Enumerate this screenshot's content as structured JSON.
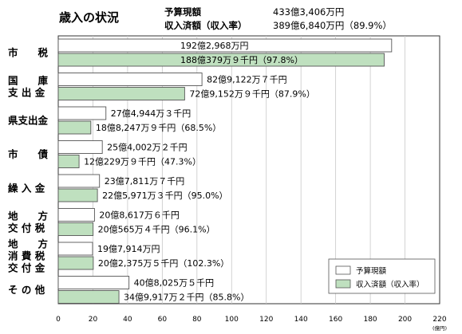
{
  "header": {
    "title": "歳入の状況",
    "budget_label": "予算現額",
    "budget_value": "433億3,406万円",
    "received_label": "収入済額（収入率）",
    "received_value": "389億6,840万円（89.9%）"
  },
  "legend": {
    "budget": "予算現額",
    "received": "収入済額（収入率）",
    "position": "bottom-right"
  },
  "colors": {
    "budget_fill": "#ffffff",
    "received_fill": "#bfe0bf",
    "bar_stroke": "#555555",
    "grid": "#c8c8c8",
    "axis": "#333333"
  },
  "chart_data": {
    "type": "bar",
    "orientation": "horizontal",
    "unit": "(億円)",
    "xlim": [
      0,
      220
    ],
    "xticks": [
      "0",
      "20",
      "40",
      "60",
      "80",
      "100",
      "120",
      "140",
      "160",
      "180",
      "200",
      "220"
    ],
    "grid": true,
    "categories": [
      [
        "市　　税"
      ],
      [
        "国　　庫",
        "支 出 金"
      ],
      [
        "県支出金"
      ],
      [
        "市　　債"
      ],
      [
        "繰 入 金"
      ],
      [
        "地　　方",
        "交 付 税"
      ],
      [
        "地　　方",
        "消 費 税",
        "交 付 金"
      ],
      [
        "そ の 他"
      ]
    ],
    "series": [
      {
        "name": "予算現額",
        "values": [
          192.3,
          82.9,
          27.5,
          25.4,
          23.8,
          20.9,
          19.8,
          40.8
        ],
        "labels": [
          "192億2,968万円",
          "82億9,122万７千円",
          "27億4,944万３千円",
          "25億4,002万２千円",
          "23億7,811万７千円",
          "20億8,617万６千円",
          "19億7,914万円",
          "40億8,025万５千円"
        ]
      },
      {
        "name": "収入済額（収入率）",
        "values": [
          188.0,
          72.9,
          18.8,
          12.0,
          22.6,
          20.1,
          20.2,
          35.0
        ],
        "labels": [
          "188億379万９千円（97.8%）",
          "72億9,152万９千円（87.9%）",
          "18億8,247万９千円（68.5%）",
          "12億229万９千円（47.3%）",
          "22億5,971万３千円（95.0%）",
          "20億565万４千円（96.1%）",
          "20億2,375万５千円（102.3%）",
          "34億9,917万２千円（85.8%）"
        ]
      }
    ]
  }
}
